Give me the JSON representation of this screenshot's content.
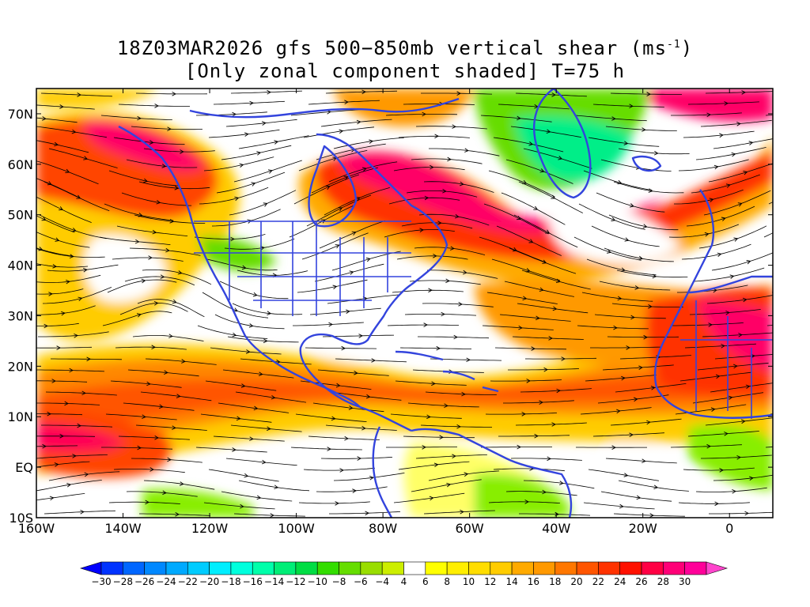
{
  "title": {
    "line1_main": "18Z03MAR2026 gfs 500−850mb vertical shear (ms",
    "line1_exp": "-1",
    "line1_end": ")",
    "line2": "[Only zonal component shaded] T=75 h"
  },
  "map": {
    "lon_range": [
      -160,
      10
    ],
    "lat_range": [
      -10,
      75
    ],
    "lat_labels": [
      "70N",
      "60N",
      "50N",
      "40N",
      "30N",
      "20N",
      "10N",
      "EQ",
      "10S"
    ],
    "lat_values": [
      70,
      60,
      50,
      40,
      30,
      20,
      10,
      0,
      -10
    ],
    "lon_labels": [
      "160W",
      "140W",
      "120W",
      "100W",
      "80W",
      "60W",
      "40W",
      "20W",
      "0"
    ],
    "lon_values": [
      -160,
      -140,
      -120,
      -100,
      -80,
      -60,
      -40,
      -20,
      0
    ],
    "coastline_color": "#3344dd",
    "streamline_color": "#000000"
  },
  "colorbar": {
    "labels": [
      "−30",
      "−28",
      "−26",
      "−24",
      "−22",
      "−20",
      "−18",
      "−16",
      "−14",
      "−12",
      "−10",
      "−8",
      "−6",
      "−4",
      "4",
      "6",
      "8",
      "10",
      "12",
      "14",
      "16",
      "18",
      "20",
      "22",
      "24",
      "26",
      "28",
      "30"
    ],
    "colors": [
      "#0000ff",
      "#0033ff",
      "#0066ff",
      "#0088ff",
      "#00aaff",
      "#00ccff",
      "#00eeff",
      "#00ffdd",
      "#00ffaa",
      "#00ee77",
      "#00dd44",
      "#33dd00",
      "#66dd00",
      "#99dd00",
      "#ccee00",
      "#ffffff",
      "#ffff00",
      "#ffee00",
      "#ffdd00",
      "#ffcc00",
      "#ffaa00",
      "#ff9900",
      "#ff7700",
      "#ff5500",
      "#ff3300",
      "#ff1100",
      "#ff0044",
      "#ff0077",
      "#ff0099",
      "#ff44cc"
    ]
  }
}
